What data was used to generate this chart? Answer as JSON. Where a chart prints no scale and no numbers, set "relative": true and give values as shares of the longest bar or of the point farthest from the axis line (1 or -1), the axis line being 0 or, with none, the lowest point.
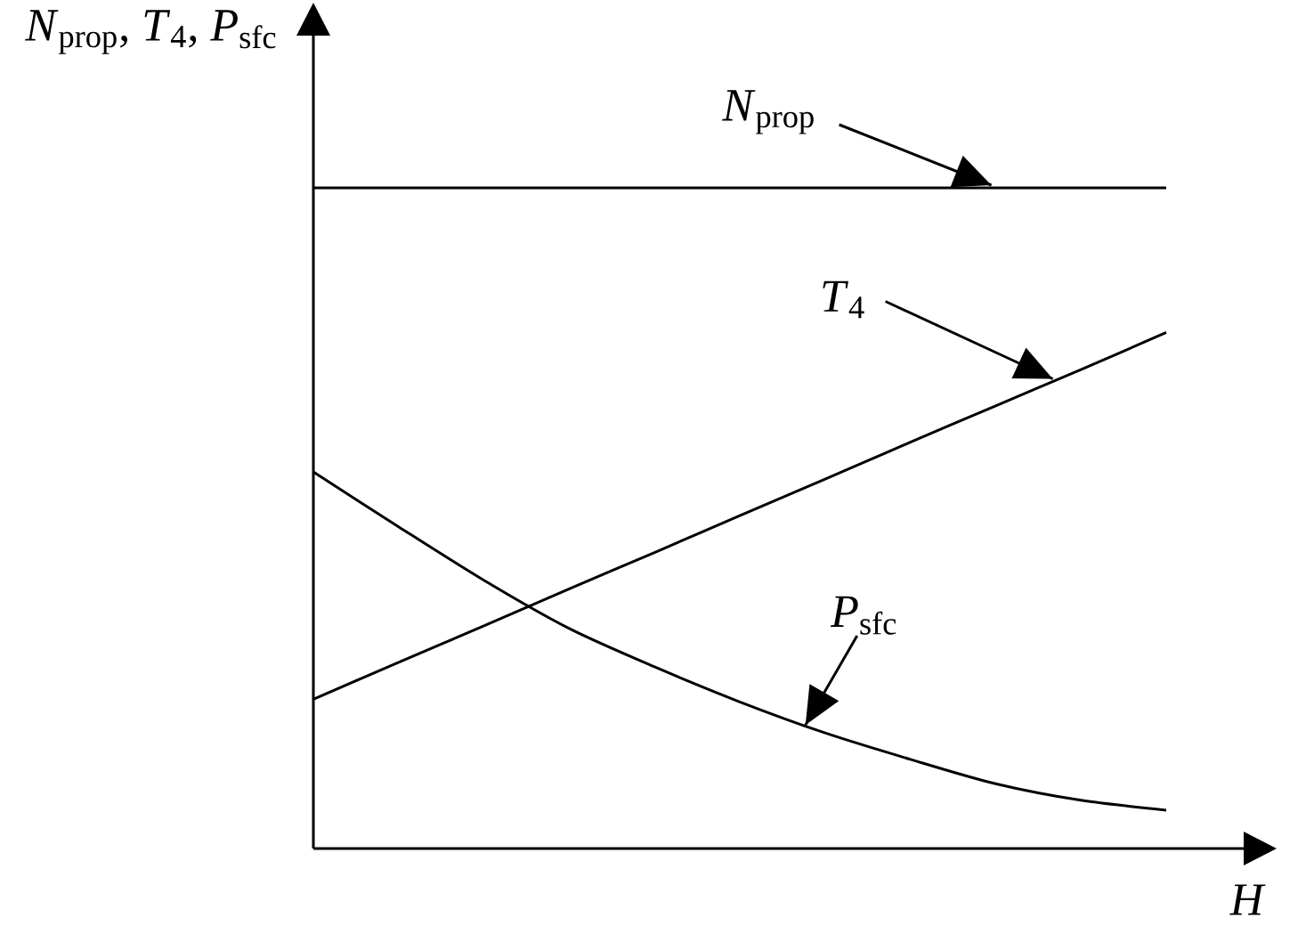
{
  "chart_data": {
    "type": "line",
    "relative": true,
    "xlabel": "*H*",
    "ylabel": "*N*$_{prop}$, *T*$_{4}$, *P*$_{sfc}$",
    "categories": [
      null,
      null,
      null,
      null,
      null,
      null,
      null,
      null,
      null,
      null,
      null
    ],
    "series": [
      {
        "name": "*N*$_{prop}$",
        "color": "#000000",
        "values": [
          1,
          1,
          1,
          1,
          1,
          1,
          1,
          1,
          1,
          1,
          1
        ]
      },
      {
        "name": "*T*$_{4}$",
        "color": "#000000",
        "values": [
          0.226,
          0.282,
          0.337,
          0.393,
          0.448,
          0.504,
          0.559,
          0.615,
          0.67,
          0.725,
          0.781
        ]
      },
      {
        "name": "*P*$_{sfc}$",
        "color": "#000000",
        "values": [
          0.57,
          0.487,
          0.406,
          0.333,
          0.275,
          0.222,
          0.175,
          0.135,
          0.098,
          0.073,
          0.058
        ]
      }
    ]
  }
}
